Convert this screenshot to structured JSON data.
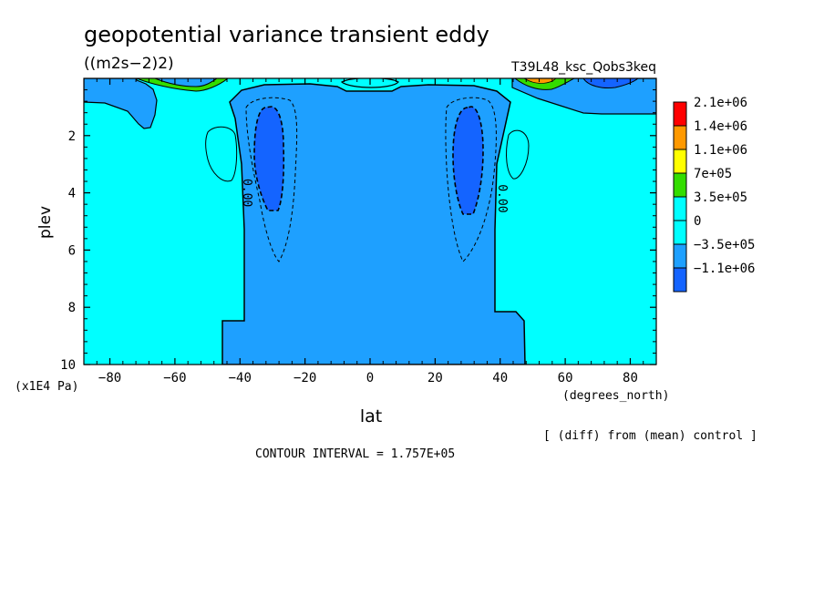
{
  "chart_data": {
    "type": "contour",
    "title": "geopotential variance transient eddy",
    "units": "((m2s−2)2)",
    "run_label": "T39L48_ksc_Qobs3keq",
    "xlabel": "lat",
    "x_units": "(degrees_north)",
    "ylabel": "plev",
    "y_units": "(x1E4 Pa)",
    "xlim": [
      -88,
      88
    ],
    "ylim": [
      10,
      0
    ],
    "x_ticks": [
      -80,
      -60,
      -40,
      -20,
      0,
      20,
      40,
      60,
      80
    ],
    "x_tick_labels": [
      "−80",
      "−60",
      "−40",
      "−20",
      "0",
      "20",
      "40",
      "60",
      "80"
    ],
    "y_ticks": [
      2,
      4,
      6,
      8,
      10
    ],
    "y_tick_labels": [
      "2",
      "4",
      "6",
      "8",
      "10"
    ],
    "contour_interval_text": "CONTOUR INTERVAL = 1.757E+05",
    "note": "[ (diff) from (mean) control ]",
    "contour_labels": [
      {
        "text": "0.00",
        "lat": -39,
        "plev": 4.0
      },
      {
        "text": "0.00",
        "lat": 39.5,
        "plev": 4.2
      }
    ],
    "legend": {
      "placement": "right",
      "levels": [
        {
          "label": "2.1e+06",
          "color": "#ff0000"
        },
        {
          "label": "1.4e+06",
          "color": "#ff9900"
        },
        {
          "label": "1.1e+06",
          "color": "#ffff00"
        },
        {
          "label": "7e+05",
          "color": "#33dd00"
        },
        {
          "label": "3.5e+05",
          "color": "#00ffff"
        },
        {
          "label": "0",
          "color": "#00ffff"
        },
        {
          "label": "−3.5e+05",
          "color": "#1ea0ff"
        },
        {
          "label": "−1.1e+06",
          "color": "#1464ff"
        }
      ]
    },
    "colors": {
      "background_field": "#00ffff",
      "negative_band": "#1ea0ff",
      "strong_negative": "#1464ff",
      "positive_band": "#33dd00",
      "strong_positive": "#ff9900"
    }
  }
}
